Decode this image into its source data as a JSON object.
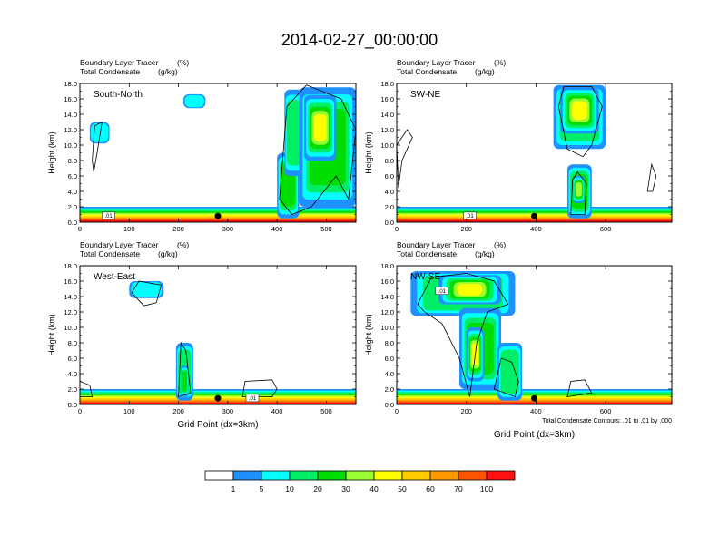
{
  "title": "2014-02-27_00:00:00",
  "field_label_tracer": "Boundary Layer Tracer",
  "field_label_tracer_unit": "(%)",
  "field_label_condensate": "Total Condensate",
  "field_label_condensate_unit": "(g/kg)",
  "ylabel": "Height (km)",
  "xlabel": "Grid Point (dx=3km)",
  "contour_note": "Total Condensate Contours: .01 to .01 by .000",
  "contour_label": ".01",
  "colorbar": {
    "colors": [
      "#ffffff",
      "#1e90ff",
      "#00ffff",
      "#00ee66",
      "#00dd00",
      "#99ff33",
      "#ffff00",
      "#ffcc00",
      "#ff9900",
      "#ff5500",
      "#ff1111"
    ],
    "labels": [
      "1",
      "5",
      "10",
      "20",
      "30",
      "40",
      "50",
      "60",
      "70",
      "100"
    ]
  },
  "chart_data": [
    {
      "type": "heatmap",
      "name": "South-North",
      "xlim": [
        0,
        560
      ],
      "ylim": [
        0,
        18
      ],
      "xticks": [
        0,
        100,
        200,
        300,
        400,
        500
      ],
      "yticks": [
        "0.0",
        "2.0",
        "4.0",
        "6.0",
        "8.0",
        "10.0",
        "12.0",
        "14.0",
        "16.0",
        "18.0"
      ],
      "marker_x": 280,
      "show_xlabel": false,
      "show_note": false,
      "contour_label_pos": [
        58,
        0.6
      ],
      "features": [
        {
          "x0": 20,
          "x1": 60,
          "y0": 10.2,
          "y1": 13.0,
          "level": 2
        },
        {
          "x0": 210,
          "x1": 255,
          "y0": 14.8,
          "y1": 16.6,
          "level": 2
        },
        {
          "x0": 400,
          "x1": 445,
          "y0": 0.5,
          "y1": 9.0,
          "level": 4
        },
        {
          "x0": 415,
          "x1": 455,
          "y0": 6.0,
          "y1": 17.2,
          "level": 3
        },
        {
          "x0": 445,
          "x1": 560,
          "y0": 2.0,
          "y1": 17.5,
          "level": 4
        },
        {
          "x0": 455,
          "x1": 520,
          "y0": 8.0,
          "y1": 16.5,
          "level": 6
        }
      ],
      "outlines": [
        [
          [
            25,
            8.0
          ],
          [
            30,
            12.5
          ],
          [
            45,
            13.0
          ],
          [
            35,
            9.0
          ],
          [
            28,
            6.5
          ]
        ],
        [
          [
            405,
            3.0
          ],
          [
            420,
            15.0
          ],
          [
            460,
            17.8
          ],
          [
            530,
            16.0
          ],
          [
            560,
            12.0
          ],
          [
            545,
            3.0
          ],
          [
            520,
            6.0
          ],
          [
            470,
            2.0
          ],
          [
            430,
            1.0
          ]
        ]
      ]
    },
    {
      "type": "heatmap",
      "name": "SW-NE",
      "xlim": [
        0,
        790
      ],
      "ylim": [
        0,
        18
      ],
      "xticks": [
        0,
        200,
        400,
        600
      ],
      "yticks": [
        "0.0",
        "2.0",
        "4.0",
        "6.0",
        "8.0",
        "10.0",
        "12.0",
        "14.0",
        "16.0",
        "18.0"
      ],
      "marker_x": 395,
      "show_xlabel": false,
      "show_note": false,
      "contour_label_pos": [
        210,
        0.6
      ],
      "features": [
        {
          "x0": 450,
          "x1": 600,
          "y0": 9.5,
          "y1": 17.8,
          "level": 3
        },
        {
          "x0": 470,
          "x1": 580,
          "y0": 11.5,
          "y1": 17.5,
          "level": 6
        },
        {
          "x0": 490,
          "x1": 560,
          "y0": 0.5,
          "y1": 7.5,
          "level": 4
        },
        {
          "x0": 505,
          "x1": 540,
          "y0": 2.5,
          "y1": 6.0,
          "level": 5
        }
      ],
      "outlines": [
        [
          [
            0,
            10.0
          ],
          [
            30,
            12.0
          ],
          [
            45,
            11.0
          ],
          [
            30,
            9.5
          ],
          [
            15,
            8.0
          ],
          [
            5,
            4.5
          ]
        ],
        [
          [
            465,
            15.0
          ],
          [
            480,
            17.6
          ],
          [
            560,
            17.6
          ],
          [
            590,
            15.0
          ],
          [
            560,
            10.0
          ],
          [
            535,
            8.5
          ],
          [
            490,
            9.5
          ]
        ],
        [
          [
            500,
            1.0
          ],
          [
            505,
            5.5
          ],
          [
            520,
            6.5
          ],
          [
            545,
            5.0
          ],
          [
            540,
            1.0
          ]
        ],
        [
          [
            720,
            4.0
          ],
          [
            732,
            7.5
          ],
          [
            745,
            6.0
          ],
          [
            735,
            4.0
          ]
        ]
      ]
    },
    {
      "type": "heatmap",
      "name": "West-East",
      "xlim": [
        0,
        560
      ],
      "ylim": [
        0,
        18
      ],
      "xticks": [
        0,
        100,
        200,
        300,
        400,
        500
      ],
      "yticks": [
        "0.0",
        "2.0",
        "4.0",
        "6.0",
        "8.0",
        "10.0",
        "12.0",
        "14.0",
        "16.0",
        "18.0"
      ],
      "marker_x": 280,
      "show_xlabel": true,
      "show_note": false,
      "contour_label_pos": [
        350,
        0.6
      ],
      "features": [
        {
          "x0": 100,
          "x1": 170,
          "y0": 13.8,
          "y1": 16.0,
          "level": 2
        },
        {
          "x0": 195,
          "x1": 230,
          "y0": 0.5,
          "y1": 8.0,
          "level": 3
        },
        {
          "x0": 205,
          "x1": 220,
          "y0": 1.0,
          "y1": 5.0,
          "level": 4
        }
      ],
      "outlines": [
        [
          [
            105,
            14.5
          ],
          [
            120,
            16.0
          ],
          [
            165,
            15.5
          ],
          [
            155,
            13.2
          ],
          [
            130,
            12.8
          ]
        ],
        [
          [
            0,
            1.0
          ],
          [
            0,
            3.0
          ],
          [
            20,
            2.5
          ],
          [
            25,
            1.0
          ]
        ],
        [
          [
            330,
            1.0
          ],
          [
            335,
            3.0
          ],
          [
            390,
            3.2
          ],
          [
            400,
            2.0
          ],
          [
            390,
            1.0
          ]
        ],
        [
          [
            200,
            1.0
          ],
          [
            205,
            8.0
          ],
          [
            215,
            7.0
          ],
          [
            225,
            1.5
          ]
        ]
      ]
    },
    {
      "type": "heatmap",
      "name": "NW-SE",
      "xlim": [
        0,
        790
      ],
      "ylim": [
        0,
        18
      ],
      "xticks": [
        0,
        200,
        400,
        600
      ],
      "yticks": [
        "0.0",
        "2.0",
        "4.0",
        "6.0",
        "8.0",
        "10.0",
        "12.0",
        "14.0",
        "16.0",
        "18.0"
      ],
      "marker_x": 395,
      "show_xlabel": true,
      "show_note": true,
      "contour_label_pos": [
        130,
        14.5
      ],
      "features": [
        {
          "x0": 40,
          "x1": 340,
          "y0": 11.5,
          "y1": 17.3,
          "level": 3
        },
        {
          "x0": 120,
          "x1": 300,
          "y0": 13.0,
          "y1": 16.8,
          "level": 6
        },
        {
          "x0": 180,
          "x1": 300,
          "y0": 2.0,
          "y1": 12.5,
          "level": 4
        },
        {
          "x0": 290,
          "x1": 360,
          "y0": 0.5,
          "y1": 8.0,
          "level": 3
        },
        {
          "x0": 200,
          "x1": 250,
          "y0": 3.0,
          "y1": 10.0,
          "level": 6
        }
      ],
      "outlines": [
        [
          [
            60,
            13.0
          ],
          [
            100,
            16.5
          ],
          [
            200,
            17.0
          ],
          [
            280,
            16.0
          ],
          [
            320,
            13.0
          ],
          [
            260,
            12.0
          ],
          [
            230,
            8.0
          ],
          [
            210,
            1.0
          ],
          [
            180,
            6.0
          ],
          [
            130,
            10.5
          ],
          [
            80,
            12.0
          ]
        ],
        [
          [
            280,
            2.0
          ],
          [
            300,
            6.0
          ],
          [
            330,
            5.5
          ],
          [
            350,
            3.0
          ],
          [
            340,
            1.0
          ]
        ],
        [
          [
            490,
            1.0
          ],
          [
            500,
            3.0
          ],
          [
            540,
            3.2
          ],
          [
            560,
            1.5
          ]
        ]
      ]
    }
  ]
}
